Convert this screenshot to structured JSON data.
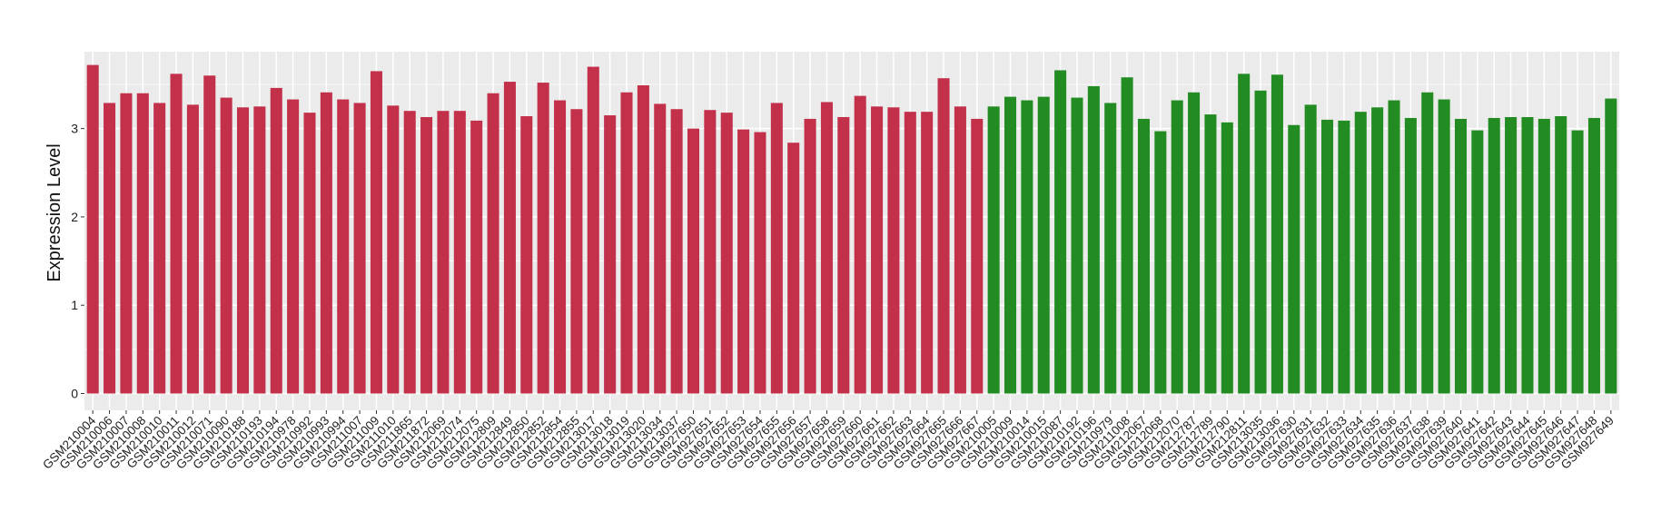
{
  "chart_data": {
    "type": "bar",
    "title": "",
    "xlabel": "",
    "ylabel": "Expression Level",
    "ylim": [
      -0.19,
      3.87
    ],
    "yticks": [
      0,
      1,
      2,
      3
    ],
    "grid": true,
    "legend": "none",
    "colors": {
      "group1": "#C3304A",
      "group2": "#228B22",
      "panel": "#EBEBEB",
      "grid": "#FFFFFF"
    },
    "categories": [
      "GSM210004",
      "GSM210006",
      "GSM210007",
      "GSM210008",
      "GSM210010",
      "GSM210011",
      "GSM210012",
      "GSM210071",
      "GSM210090",
      "GSM210188",
      "GSM210193",
      "GSM210194",
      "GSM210978",
      "GSM210992",
      "GSM210993",
      "GSM210994",
      "GSM211007",
      "GSM211009",
      "GSM211010",
      "GSM211865",
      "GSM211872",
      "GSM212069",
      "GSM212074",
      "GSM212075",
      "GSM212809",
      "GSM212849",
      "GSM212850",
      "GSM212852",
      "GSM212854",
      "GSM212855",
      "GSM213017",
      "GSM213018",
      "GSM213019",
      "GSM213020",
      "GSM213034",
      "GSM213037",
      "GSM927650",
      "GSM927651",
      "GSM927652",
      "GSM927653",
      "GSM927654",
      "GSM927655",
      "GSM927656",
      "GSM927657",
      "GSM927658",
      "GSM927659",
      "GSM927660",
      "GSM927661",
      "GSM927662",
      "GSM927663",
      "GSM927664",
      "GSM927665",
      "GSM927666",
      "GSM927667",
      "GSM210005",
      "GSM210009",
      "GSM210014",
      "GSM210015",
      "GSM210087",
      "GSM210192",
      "GSM210196",
      "GSM210979",
      "GSM211008",
      "GSM212067",
      "GSM212068",
      "GSM212070",
      "GSM212787",
      "GSM212789",
      "GSM212790",
      "GSM212811",
      "GSM213035",
      "GSM213036",
      "GSM927630",
      "GSM927631",
      "GSM927632",
      "GSM927633",
      "GSM927634",
      "GSM927635",
      "GSM927636",
      "GSM927637",
      "GSM927638",
      "GSM927639",
      "GSM927640",
      "GSM927641",
      "GSM927642",
      "GSM927643",
      "GSM927644",
      "GSM927645",
      "GSM927646",
      "GSM927647",
      "GSM927648",
      "GSM927649"
    ],
    "values": [
      3.72,
      3.29,
      3.4,
      3.4,
      3.29,
      3.62,
      3.27,
      3.6,
      3.35,
      3.24,
      3.25,
      3.46,
      3.33,
      3.18,
      3.41,
      3.33,
      3.29,
      3.65,
      3.26,
      3.2,
      3.13,
      3.2,
      3.2,
      3.09,
      3.4,
      3.53,
      3.14,
      3.52,
      3.32,
      3.22,
      3.7,
      3.15,
      3.41,
      3.49,
      3.28,
      3.22,
      3.0,
      3.21,
      3.18,
      2.99,
      2.96,
      3.29,
      2.84,
      3.11,
      3.3,
      3.13,
      3.37,
      3.25,
      3.24,
      3.19,
      3.19,
      3.57,
      3.25,
      3.11,
      3.25,
      3.36,
      3.32,
      3.36,
      3.66,
      3.35,
      3.48,
      3.29,
      3.58,
      3.11,
      2.97,
      3.32,
      3.41,
      3.16,
      3.07,
      3.62,
      3.43,
      3.61,
      3.04,
      3.27,
      3.1,
      3.09,
      3.19,
      3.24,
      3.32,
      3.12,
      3.41,
      3.33,
      3.11,
      2.98,
      3.12,
      3.13,
      3.13,
      3.11,
      3.14,
      2.98,
      3.12,
      3.34
    ],
    "groups": [
      "group1",
      "group1",
      "group1",
      "group1",
      "group1",
      "group1",
      "group1",
      "group1",
      "group1",
      "group1",
      "group1",
      "group1",
      "group1",
      "group1",
      "group1",
      "group1",
      "group1",
      "group1",
      "group1",
      "group1",
      "group1",
      "group1",
      "group1",
      "group1",
      "group1",
      "group1",
      "group1",
      "group1",
      "group1",
      "group1",
      "group1",
      "group1",
      "group1",
      "group1",
      "group1",
      "group1",
      "group1",
      "group1",
      "group1",
      "group1",
      "group1",
      "group1",
      "group1",
      "group1",
      "group1",
      "group1",
      "group1",
      "group1",
      "group1",
      "group1",
      "group1",
      "group1",
      "group1",
      "group1",
      "group2",
      "group2",
      "group2",
      "group2",
      "group2",
      "group2",
      "group2",
      "group2",
      "group2",
      "group2",
      "group2",
      "group2",
      "group2",
      "group2",
      "group2",
      "group2",
      "group2",
      "group2",
      "group2",
      "group2",
      "group2",
      "group2",
      "group2",
      "group2",
      "group2",
      "group2",
      "group2",
      "group2",
      "group2",
      "group2",
      "group2",
      "group2",
      "group2",
      "group2",
      "group2",
      "group2",
      "group2",
      "group2"
    ]
  }
}
